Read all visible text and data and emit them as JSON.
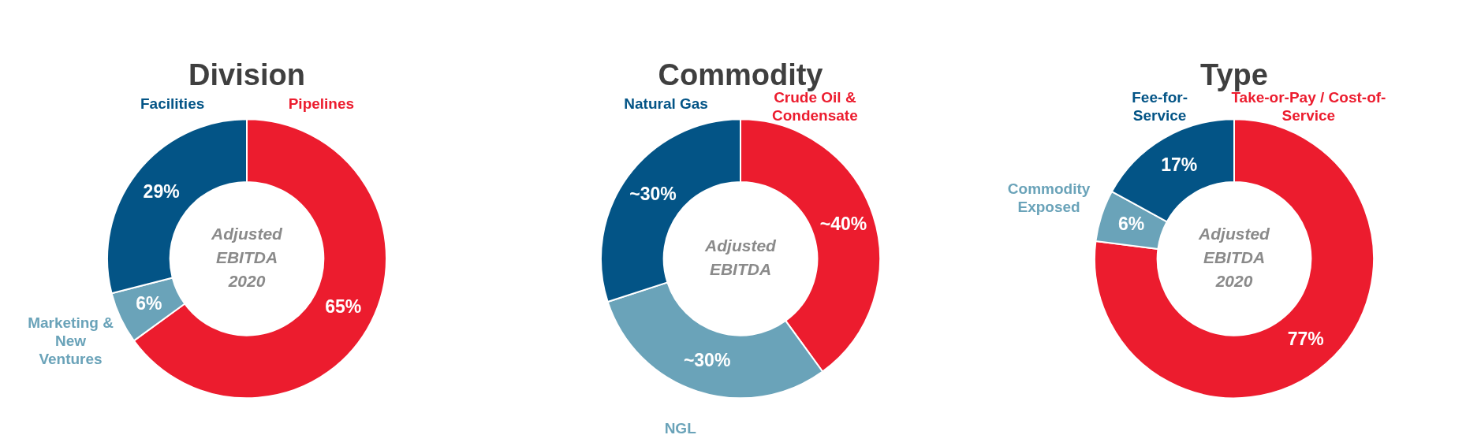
{
  "chart_data": [
    {
      "type": "donut",
      "title": "Division",
      "categories": [
        "Pipelines",
        "Marketing & New Ventures",
        "Facilities"
      ],
      "values": [
        65,
        6,
        29
      ],
      "colors": [
        "#ec1c2e",
        "#6aa3b9",
        "#035486"
      ],
      "value_labels": [
        "65%",
        "6%",
        "29%"
      ],
      "annotations": [
        "Adjusted EBITDA 2020"
      ],
      "legend": false
    },
    {
      "type": "donut",
      "title": "Commodity",
      "categories": [
        "Crude Oil & Condensate",
        "NGL",
        "Natural Gas"
      ],
      "values": [
        40,
        30,
        30
      ],
      "colors": [
        "#ec1c2e",
        "#6aa3b9",
        "#035486"
      ],
      "value_labels": [
        "~40%",
        "~30%",
        "~30%"
      ],
      "annotations": [
        "Adjusted EBITDA"
      ],
      "legend": false
    },
    {
      "type": "donut",
      "title": "Type",
      "categories": [
        "Take-or-Pay / Cost-of-Service",
        "Commodity Exposed",
        "Fee-for-Service"
      ],
      "values": [
        77,
        6,
        17
      ],
      "colors": [
        "#ec1c2e",
        "#6aa3b9",
        "#035486"
      ],
      "value_labels": [
        "77%",
        "6%",
        "17%"
      ],
      "annotations": [
        "Adjusted EBITDA 2020"
      ],
      "legend": false
    }
  ]
}
